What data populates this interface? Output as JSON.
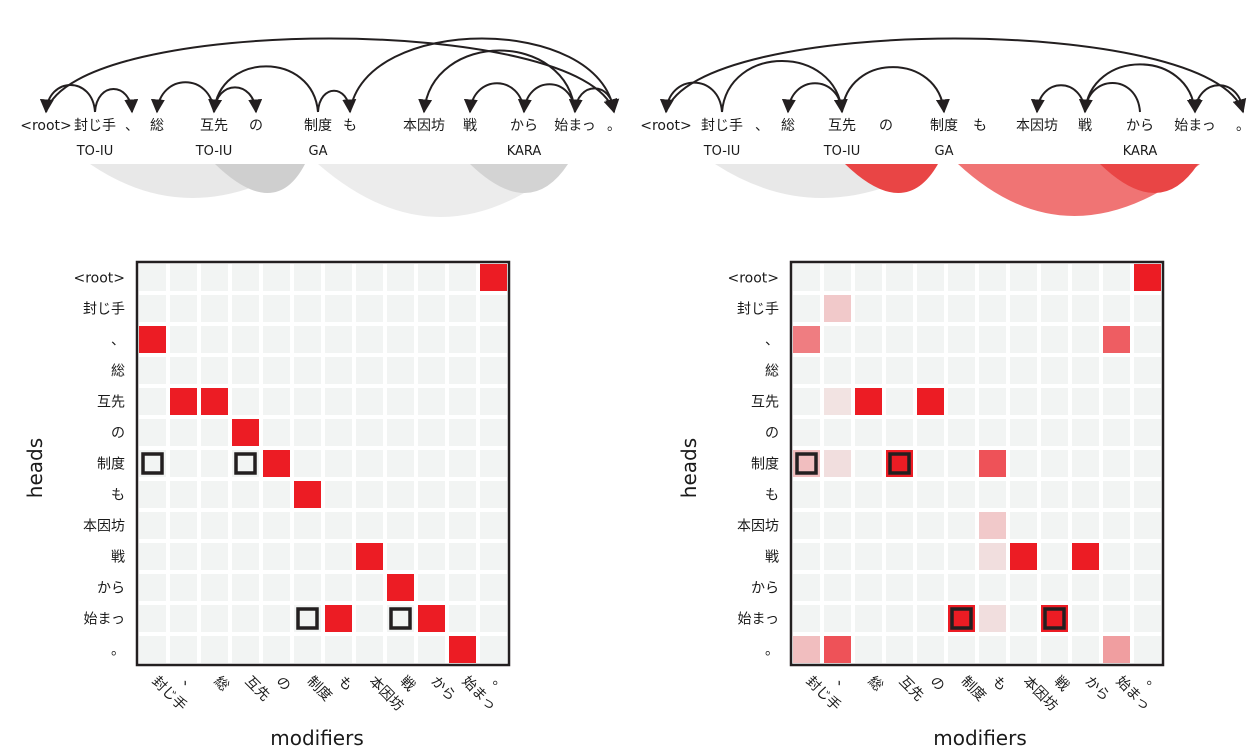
{
  "tokens": [
    "<root>",
    "封じ手",
    "、",
    "総",
    "互先",
    "の",
    "制度",
    "も",
    "本因坊",
    "戦",
    "から",
    "始まっ",
    "。"
  ],
  "axis": {
    "heads": "heads",
    "modifiers": "modifiers"
  },
  "colors": {
    "strong": "#ec1c24",
    "cell_bg": "#f2f4f3",
    "grid": "#ffffff",
    "box": "#231f20",
    "arc": "#231f20",
    "gray_light": "#e6e6e6",
    "gray_dark": "#cccccc"
  },
  "panels": [
    {
      "name": "left",
      "token_labels": [
        {
          "tok": 1,
          "text": "TO-IU"
        },
        {
          "tok": 4,
          "text": "TO-IU"
        },
        {
          "tok": 6,
          "text": "GA"
        },
        {
          "tok": 10,
          "text": "KARA"
        }
      ],
      "arcs": [
        [
          1,
          0
        ],
        [
          1,
          2
        ],
        [
          4,
          3
        ],
        [
          4,
          5
        ],
        [
          6,
          4
        ],
        [
          6,
          7
        ],
        [
          7,
          12
        ],
        [
          10,
          9
        ],
        [
          11,
          8
        ],
        [
          11,
          10
        ],
        [
          12,
          11
        ],
        [
          0,
          12
        ]
      ],
      "chart_data": {
        "type": "heatmap",
        "rows": [
          "<root>",
          "封じ手",
          "、",
          "総",
          "互先",
          "の",
          "制度",
          "も",
          "本因坊",
          "戦",
          "から",
          "始まっ",
          "。"
        ],
        "cols": [
          "封じ手",
          "、",
          "総",
          "互先",
          "の",
          "制度",
          "も",
          "本因坊",
          "戦",
          "から",
          "始まっ",
          "。"
        ],
        "cells": [
          [
            0,
            11,
            1.0
          ],
          [
            2,
            0,
            1.0
          ],
          [
            4,
            1,
            1.0
          ],
          [
            4,
            2,
            1.0
          ],
          [
            5,
            3,
            1.0
          ],
          [
            6,
            4,
            1.0
          ],
          [
            7,
            5,
            1.0
          ],
          [
            9,
            7,
            1.0
          ],
          [
            10,
            8,
            1.0
          ],
          [
            11,
            6,
            1.0
          ],
          [
            11,
            9,
            1.0
          ],
          [
            12,
            10,
            1.0
          ]
        ],
        "boxes": [
          [
            6,
            0
          ],
          [
            6,
            3
          ],
          [
            11,
            5
          ],
          [
            11,
            8
          ]
        ]
      }
    },
    {
      "name": "right",
      "token_labels": [
        {
          "tok": 1,
          "text": "TO-IU"
        },
        {
          "tok": 4,
          "text": "TO-IU"
        },
        {
          "tok": 6,
          "text": "GA"
        },
        {
          "tok": 10,
          "text": "KARA"
        }
      ],
      "arcs": [
        [
          1,
          0
        ],
        [
          1,
          4
        ],
        [
          4,
          3
        ],
        [
          4,
          6
        ],
        [
          9,
          8
        ],
        [
          9,
          11
        ],
        [
          10,
          9
        ],
        [
          12,
          11
        ],
        [
          0,
          12
        ]
      ],
      "chart_data": {
        "type": "heatmap",
        "rows": [
          "<root>",
          "封じ手",
          "、",
          "総",
          "互先",
          "の",
          "制度",
          "も",
          "本因坊",
          "戦",
          "から",
          "始まっ",
          "。"
        ],
        "cols": [
          "封じ手",
          "、",
          "総",
          "互先",
          "の",
          "制度",
          "も",
          "本因坊",
          "戦",
          "から",
          "始まっ",
          "。"
        ],
        "cells": [
          [
            0,
            11,
            1.0
          ],
          [
            1,
            1,
            0.2
          ],
          [
            2,
            0,
            0.55
          ],
          [
            2,
            10,
            0.7
          ],
          [
            4,
            1,
            0.08
          ],
          [
            4,
            2,
            1.0
          ],
          [
            4,
            4,
            1.0
          ],
          [
            6,
            0,
            0.25
          ],
          [
            6,
            1,
            0.1
          ],
          [
            6,
            3,
            1.0
          ],
          [
            6,
            6,
            0.75
          ],
          [
            8,
            6,
            0.2
          ],
          [
            9,
            6,
            0.1
          ],
          [
            9,
            7,
            1.0
          ],
          [
            9,
            9,
            1.0
          ],
          [
            11,
            5,
            1.0
          ],
          [
            11,
            6,
            0.1
          ],
          [
            11,
            8,
            1.0
          ],
          [
            12,
            0,
            0.25
          ],
          [
            12,
            1,
            0.75
          ],
          [
            12,
            10,
            0.4
          ]
        ],
        "boxes": [
          [
            6,
            0
          ],
          [
            6,
            3
          ],
          [
            11,
            5
          ],
          [
            11,
            8
          ]
        ]
      }
    }
  ]
}
